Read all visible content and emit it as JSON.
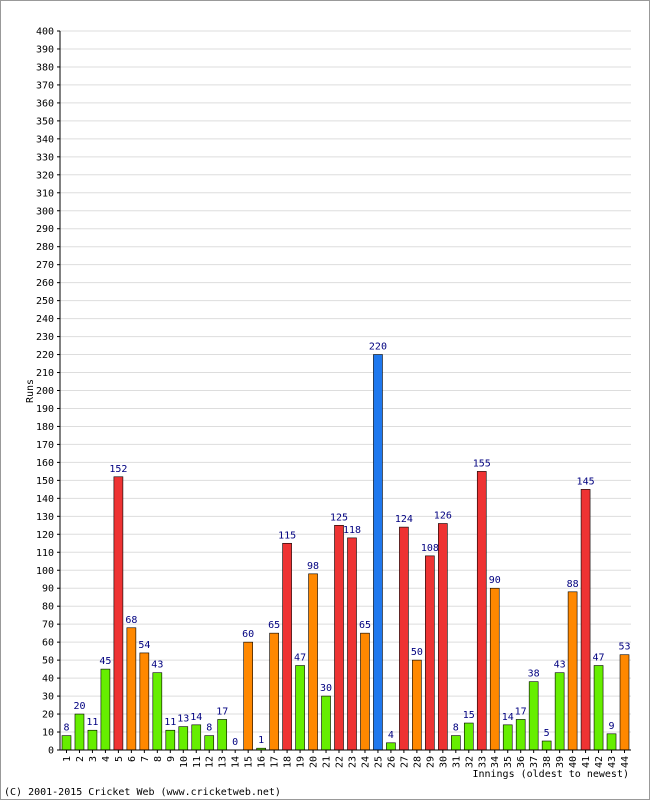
{
  "chart_data": {
    "type": "bar",
    "ylabel": "Runs",
    "xlabel": "Innings (oldest to newest)",
    "ylim": [
      0,
      400
    ],
    "ytick_step": 10,
    "grid": true,
    "categories": [
      "1",
      "2",
      "3",
      "4",
      "5",
      "6",
      "7",
      "8",
      "9",
      "10",
      "11",
      "12",
      "13",
      "14",
      "15",
      "16",
      "17",
      "18",
      "19",
      "20",
      "21",
      "22",
      "23",
      "24",
      "25",
      "26",
      "27",
      "28",
      "29",
      "30",
      "31",
      "32",
      "33",
      "34",
      "35",
      "36",
      "37",
      "38",
      "39",
      "40",
      "41",
      "42",
      "43",
      "44"
    ],
    "values": [
      8,
      20,
      11,
      45,
      152,
      68,
      54,
      43,
      11,
      13,
      14,
      8,
      17,
      0,
      60,
      1,
      65,
      115,
      47,
      98,
      30,
      125,
      118,
      65,
      220,
      4,
      124,
      50,
      108,
      126,
      8,
      15,
      155,
      90,
      14,
      17,
      38,
      5,
      43,
      88,
      145,
      47,
      9,
      53
    ],
    "bar_colors": [
      "#66ee00",
      "#66ee00",
      "#66ee00",
      "#66ee00",
      "#ee3333",
      "#ff8800",
      "#ff8800",
      "#66ee00",
      "#66ee00",
      "#66ee00",
      "#66ee00",
      "#66ee00",
      "#66ee00",
      "#66ee00",
      "#ff8800",
      "#66ee00",
      "#ff8800",
      "#ee3333",
      "#66ee00",
      "#ff8800",
      "#66ee00",
      "#ee3333",
      "#ee3333",
      "#ff8800",
      "#1f78ee",
      "#66ee00",
      "#ee3333",
      "#ff8800",
      "#ee3333",
      "#ee3333",
      "#66ee00",
      "#66ee00",
      "#ee3333",
      "#ff8800",
      "#66ee00",
      "#66ee00",
      "#66ee00",
      "#66ee00",
      "#66ee00",
      "#ff8800",
      "#ee3333",
      "#66ee00",
      "#66ee00",
      "#ff8800"
    ]
  },
  "footer": {
    "copyright": "(C) 2001-2015 Cricket Web (www.cricketweb.net)"
  }
}
